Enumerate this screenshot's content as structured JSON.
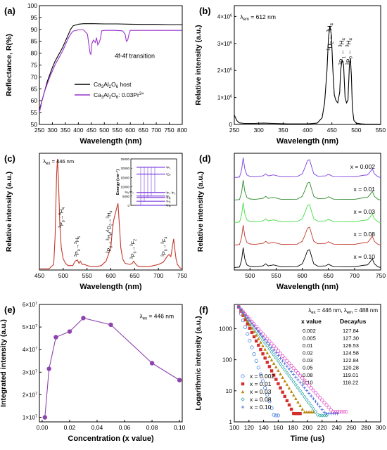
{
  "chart_data": [
    {
      "id": "a",
      "panel_label": "(a)",
      "type": "line",
      "xlabel": "Wavelength (nm)",
      "ylabel": "Reflectance, R(%)",
      "xlim": [
        250,
        800
      ],
      "ylim": [
        50,
        100
      ],
      "xticks": [
        250,
        300,
        350,
        400,
        450,
        500,
        550,
        600,
        650,
        700,
        750,
        800
      ],
      "yticks": [
        50,
        55,
        60,
        65,
        70,
        75,
        80,
        85,
        90,
        95,
        100
      ],
      "annotations": [
        {
          "text": "4f-4f transition",
          "x": 540,
          "y": 78
        }
      ],
      "series": [
        {
          "name": "Ca3Al2O6 host",
          "legend_html": "Ca<tspan dy='2' font-size='6'>3</tspan><tspan dy='-2'>Al</tspan><tspan dy='2' font-size='6'>2</tspan><tspan dy='-2'>O</tspan><tspan dy='2' font-size='6'>6</tspan><tspan dy='-2'> host</tspan>",
          "color": "#000000",
          "x": [
            250,
            260,
            270,
            280,
            290,
            300,
            310,
            320,
            330,
            340,
            350,
            360,
            370,
            380,
            400,
            420,
            440,
            460,
            500,
            550,
            600,
            650,
            700,
            750,
            800
          ],
          "y": [
            56,
            60,
            64,
            68,
            71,
            74,
            76.5,
            78.5,
            80.5,
            82.5,
            85,
            87.5,
            90,
            91.5,
            92.2,
            92.4,
            92.4,
            92.4,
            92.3,
            92.3,
            92.2,
            92.1,
            92.1,
            92.0,
            92.0
          ]
        },
        {
          "name": "Ca3Al2O6: 0.03Pr3+",
          "legend_html": "Ca<tspan dy='2' font-size='6'>3</tspan><tspan dy='-2'>Al</tspan><tspan dy='2' font-size='6'>2</tspan><tspan dy='-2'>O</tspan><tspan dy='2' font-size='6'>6</tspan><tspan dy='-2'>: 0.03Pr</tspan><tspan dy='-3' font-size='6'>3+</tspan>",
          "color": "#9933cc",
          "x": [
            250,
            260,
            270,
            280,
            290,
            300,
            310,
            320,
            330,
            340,
            350,
            360,
            370,
            380,
            400,
            420,
            435,
            440,
            445,
            448,
            452,
            458,
            465,
            470,
            475,
            480,
            485,
            490,
            500,
            540,
            570,
            580,
            585,
            590,
            595,
            600,
            620,
            650,
            700,
            750,
            800
          ],
          "y": [
            55,
            60,
            64,
            67,
            70,
            72.5,
            75,
            77,
            79,
            81,
            83.5,
            86,
            88,
            89.3,
            89.8,
            89.8,
            88,
            84,
            80,
            79.5,
            84,
            85.5,
            84.5,
            86.5,
            83.5,
            84.5,
            86,
            89.4,
            89.6,
            89.6,
            89.4,
            88,
            85,
            85.5,
            88,
            89.6,
            89.6,
            89.6,
            89.6,
            89.6,
            89.6
          ]
        }
      ]
    },
    {
      "id": "b",
      "panel_label": "(b)",
      "type": "line",
      "xlabel": "Wavelength (nm)",
      "ylabel": "Relative intensity (a.u.)",
      "xlim": [
        250,
        550
      ],
      "ylim": [
        0,
        4400000
      ],
      "xticks": [
        250,
        300,
        350,
        400,
        450,
        500,
        550
      ],
      "yticks": [
        0,
        1000000,
        2000000,
        3000000,
        4000000
      ],
      "ytick_labels": [
        {
          "base": "0",
          "exp": ""
        },
        {
          "base": "1×10",
          "exp": "6"
        },
        {
          "base": "2×10",
          "exp": "6"
        },
        {
          "base": "3×10",
          "exp": "6"
        },
        {
          "base": "4×10",
          "exp": "6"
        }
      ],
      "annotations": [
        {
          "id": "lem",
          "html": "λ<tspan dy='2' font-size='6'>em</tspan><tspan dy='-2'> = 612 nm</tspan>",
          "x": 262,
          "y": 3900000
        },
        {
          "id": "b1",
          "html": "<tspan dy='-3' font-size='6'>1</tspan><tspan dy='3'>D</tspan><tspan dy='2' font-size='6'>2</tspan><tspan dy='-2'> ← </tspan><tspan dy='-3' font-size='6'>3</tspan><tspan dy='3'>H</tspan><tspan dy='2' font-size='6'>4</tspan>",
          "x": 450,
          "y": 3750000,
          "rotate": -90
        },
        {
          "id": "b2",
          "html": "<tspan dy='-3' font-size='6'>3</tspan><tspan dy='3'>P</tspan><tspan dy='2' font-size='6'>1</tspan><tspan dy='-2'> ← </tspan><tspan dy='-3' font-size='6'>3</tspan><tspan dy='3'>H</tspan><tspan dy='2' font-size='6'>4</tspan>",
          "x": 474,
          "y": 3200000,
          "rotate": -90
        },
        {
          "id": "b3",
          "html": "<tspan dy='-3' font-size='6'>3</tspan><tspan dy='3'>P</tspan><tspan dy='2' font-size='6'>0</tspan><tspan dy='-2'> ← </tspan><tspan dy='-3' font-size='6'>3</tspan><tspan dy='3'>H</tspan><tspan dy='2' font-size='6'>4</tspan>",
          "x": 489,
          "y": 3200000,
          "rotate": -90
        }
      ],
      "series": [
        {
          "color": "#000000",
          "x": [
            250,
            255,
            260,
            270,
            290,
            310,
            330,
            360,
            400,
            420,
            430,
            435,
            440,
            443,
            446,
            449,
            452,
            455,
            458,
            462,
            466,
            468,
            471,
            474,
            477,
            480,
            483,
            486,
            488,
            490,
            492,
            495,
            500,
            510,
            520,
            550
          ],
          "y": [
            350000,
            150000,
            60000,
            40000,
            40000,
            50000,
            40000,
            20000,
            20000,
            50000,
            250000,
            800000,
            2000000,
            3200000,
            3650000,
            3300000,
            2000000,
            1100000,
            900000,
            800000,
            1200000,
            2000000,
            2400000,
            2200000,
            1000000,
            800000,
            900000,
            2200000,
            2450000,
            1800000,
            600000,
            150000,
            50000,
            20000,
            10000,
            10000
          ]
        }
      ]
    },
    {
      "id": "c",
      "panel_label": "(c)",
      "type": "line",
      "xlabel": "Wavelength (nm)",
      "ylabel": "Relative intensity (a.u.)",
      "xlim": [
        450,
        750
      ],
      "ylim": [
        0,
        1.05
      ],
      "xticks": [
        450,
        500,
        550,
        600,
        650,
        700,
        750
      ],
      "annotations": [
        {
          "id": "lex",
          "html": "λ<tspan dy='2' font-size='6'>ex</tspan><tspan dy='-2'> = 446 nm</tspan>",
          "x": 458,
          "y": 0.96
        },
        {
          "id": "c1",
          "html": "<tspan dy='-3' font-size='5'>3</tspan><tspan dy='3'>P</tspan><tspan dy='2' font-size='5'>0</tspan><tspan dy='-2'>→</tspan><tspan dy='-3' font-size='5'>3</tspan><tspan dy='3'>H</tspan><tspan dy='2' font-size='5'>4</tspan>",
          "x": 500,
          "y": 0.38,
          "rotate": -90
        },
        {
          "id": "c2",
          "html": "<tspan dy='-3' font-size='5'>3</tspan><tspan dy='3'>P</tspan><tspan dy='2' font-size='5'>0</tspan><tspan dy='-2'>→</tspan><tspan dy='-3' font-size='5'>3</tspan><tspan dy='3'>H</tspan><tspan dy='2' font-size='5'>5</tspan>",
          "x": 533,
          "y": 0.12,
          "rotate": -90
        },
        {
          "id": "c3",
          "html": "<tspan dy='-3' font-size='5'>3</tspan><tspan dy='3'>P</tspan><tspan dy='2' font-size='5'>0</tspan><tspan dy='-2'>→</tspan><tspan dy='-3' font-size='5'>3</tspan><tspan dy='3'>H</tspan><tspan dy='2' font-size='5'>6</tspan><tspan dy='-2'>/</tspan><tspan dy='-3' font-size='5'>1</tspan><tspan dy='3'>D</tspan><tspan dy='2' font-size='5'>2</tspan><tspan dy='-2'>→</tspan><tspan dy='-3' font-size='5'>3</tspan><tspan dy='3'>H</tspan><tspan dy='2' font-size='5'>4</tspan>",
          "x": 600,
          "y": 0.15,
          "rotate": -90
        },
        {
          "id": "c4",
          "html": "<tspan dy='-3' font-size='5'>3</tspan><tspan dy='3'>P</tspan><tspan dy='2' font-size='5'>0</tspan><tspan dy='-2'>→</tspan><tspan dy='-3' font-size='5'>3</tspan><tspan dy='3'>F</tspan><tspan dy='2' font-size='5'>2</tspan>",
          "x": 650,
          "y": 0.1,
          "rotate": -90
        },
        {
          "id": "c5",
          "html": "<tspan dy='-3' font-size='5'>3</tspan><tspan dy='3'>P</tspan><tspan dy='2' font-size='5'>0</tspan><tspan dy='-2'>→</tspan><tspan dy='-3' font-size='5'>3</tspan><tspan dy='3'>F</tspan><tspan dy='2' font-size='5'>4</tspan>",
          "x": 715,
          "y": 0.12,
          "rotate": -90
        }
      ],
      "series": [
        {
          "color": "#c0392b",
          "x": [
            450,
            470,
            480,
            483,
            486,
            488,
            490,
            493,
            496,
            500,
            505,
            510,
            520,
            525,
            530,
            533,
            536,
            540,
            545,
            550,
            560,
            570,
            580,
            590,
            600,
            603,
            606,
            609,
            612,
            615,
            618,
            621,
            625,
            630,
            640,
            645,
            648,
            651,
            655,
            660,
            670,
            680,
            690,
            700,
            710,
            715,
            718,
            722,
            726,
            729,
            732,
            734,
            737,
            740,
            745,
            750
          ],
          "y": [
            0.01,
            0.01,
            0.05,
            0.3,
            0.85,
            1.0,
            0.8,
            0.4,
            0.2,
            0.1,
            0.06,
            0.04,
            0.04,
            0.08,
            0.09,
            0.06,
            0.08,
            0.05,
            0.05,
            0.04,
            0.03,
            0.03,
            0.04,
            0.08,
            0.2,
            0.35,
            0.45,
            0.5,
            0.55,
            0.6,
            0.4,
            0.2,
            0.1,
            0.06,
            0.05,
            0.06,
            0.08,
            0.06,
            0.04,
            0.03,
            0.03,
            0.03,
            0.04,
            0.05,
            0.07,
            0.1,
            0.12,
            0.14,
            0.12,
            0.2,
            0.28,
            0.2,
            0.1,
            0.05,
            0.02,
            0.01
          ]
        }
      ],
      "inset": {
        "ylabel": "Energy (cm⁻¹)",
        "yticks": [
          0,
          5000,
          10000,
          15000,
          20000,
          25000
        ],
        "levels": [
          {
            "label": "³P₀",
            "e": 20500
          },
          {
            "label": "¹D₂",
            "e": 16800
          },
          {
            "label": "³F₄ ³F₃",
            "e": 6900
          },
          {
            "label": "³F₂",
            "e": 5000
          },
          {
            "label": "³H₆",
            "e": 4200
          },
          {
            "label": "³H₅",
            "e": 2200
          },
          {
            "label": "³H₄",
            "e": 0
          }
        ],
        "side_label": "³H₆/³F₂"
      }
    },
    {
      "id": "d",
      "panel_label": "(d)",
      "type": "line",
      "xlabel": "Wavelength (nm)",
      "ylabel": "Relative intensity (a.u.)",
      "xlim": [
        470,
        750
      ],
      "xticks": [
        500,
        550,
        600,
        650,
        700,
        750
      ],
      "series": [
        {
          "name": "x = 0.002",
          "color": "#7b3fe0"
        },
        {
          "name": "x = 0.01",
          "color": "#2e8b2e"
        },
        {
          "name": "x = 0.03",
          "color": "#44dd44"
        },
        {
          "name": "x = 0.08",
          "color": "#c0392b"
        },
        {
          "name": "x = 0.10",
          "color": "#000000"
        }
      ],
      "profile_x": [
        470,
        480,
        484,
        487,
        490,
        494,
        500,
        510,
        525,
        530,
        535,
        545,
        560,
        590,
        600,
        605,
        610,
        614,
        618,
        622,
        630,
        645,
        650,
        660,
        700,
        715,
        725,
        730,
        734,
        738,
        745,
        750
      ],
      "profile_y": [
        0.02,
        0.04,
        0.4,
        1.0,
        0.45,
        0.15,
        0.07,
        0.05,
        0.1,
        0.2,
        0.1,
        0.15,
        0.05,
        0.06,
        0.2,
        0.5,
        0.85,
        0.9,
        0.55,
        0.2,
        0.08,
        0.1,
        0.18,
        0.06,
        0.05,
        0.12,
        0.15,
        0.3,
        0.45,
        0.2,
        0.05,
        0.02
      ]
    },
    {
      "id": "e",
      "panel_label": "(e)",
      "type": "line",
      "xlabel": "Concentration (x value)",
      "ylabel": "Integrated intensity (a.u.)",
      "xlim": [
        -0.002,
        0.102
      ],
      "ylim": [
        8000000,
        60000000
      ],
      "xticks": [
        0.0,
        0.02,
        0.04,
        0.06,
        0.08,
        0.1
      ],
      "xtick_labels": [
        "0.00",
        "0.02",
        "0.04",
        "0.06",
        "0.08",
        "0.10"
      ],
      "yticks": [
        10000000,
        20000000,
        30000000,
        40000000,
        50000000,
        60000000
      ],
      "ytick_labels": [
        {
          "base": "1×10",
          "exp": "7"
        },
        {
          "base": "2×10",
          "exp": "7"
        },
        {
          "base": "3×10",
          "exp": "7"
        },
        {
          "base": "4×10",
          "exp": "7"
        },
        {
          "base": "5×10",
          "exp": "7"
        },
        {
          "base": "6×10",
          "exp": "7"
        }
      ],
      "annotations": [
        {
          "id": "lex",
          "html": "λ<tspan dy='2' font-size='6'>ex</tspan><tspan dy='-2'> = 446 nm</tspan>",
          "x": 0.071,
          "y": 54000000
        }
      ],
      "series": [
        {
          "color": "#8e44ad",
          "x": [
            0.002,
            0.005,
            0.01,
            0.02,
            0.03,
            0.05,
            0.08,
            0.1
          ],
          "y": [
            10000000,
            31500000,
            45500000,
            48000000,
            54000000,
            51000000,
            34000000,
            26500000
          ]
        }
      ]
    },
    {
      "id": "f",
      "panel_label": "(f)",
      "type": "scatter",
      "xlabel": "Time (us)",
      "ylabel": "Logarithmic intensity (a.u.)",
      "xlim": [
        100,
        300
      ],
      "ylim_log": [
        1,
        6000
      ],
      "xticks": [
        100,
        120,
        140,
        160,
        180,
        200,
        220,
        240,
        260,
        280,
        300
      ],
      "yticks": [
        1,
        10,
        100,
        1000
      ],
      "ytick_labels": [
        "1",
        "10",
        "100",
        "1000"
      ],
      "header_html": "λ<tspan dy='2' font-size='6'>ex</tspan><tspan dy='-2'> = 446 nm, λ</tspan><tspan dy='2' font-size='6'>em</tspan><tspan dy='-2'> = 488 nm</tspan>",
      "table": {
        "col1": "x  value",
        "col2": "Decay/us",
        "rows": [
          [
            "0.002",
            "127.84"
          ],
          [
            "0.005",
            "127.30"
          ],
          [
            "0.01",
            "126.53"
          ],
          [
            "0.02",
            "124.58"
          ],
          [
            "0.03",
            "122.84"
          ],
          [
            "0.05",
            "120.28"
          ],
          [
            "0.08",
            "119.01"
          ],
          [
            "0.10",
            "118.22"
          ]
        ]
      },
      "series": [
        {
          "name": "x = 0.002",
          "color": "#2e6fd9",
          "marker": "o",
          "tau": 6.0
        },
        {
          "name": "x = 0.01",
          "color": "#d32f2f",
          "marker": "s",
          "tau": 9.5
        },
        {
          "name": "x = 0.03",
          "color": "#b8860b",
          "marker": "^",
          "tau": 11.5
        },
        {
          "name": "x = 0.08",
          "color": "#20a0a0",
          "marker": "d",
          "tau": 13.5
        },
        {
          "name": "x = 0.10",
          "color": "#3b5bdb",
          "marker": "*",
          "tau": 15.0
        },
        {
          "name": "",
          "color": "#e040c0",
          "marker": "o",
          "tau": 16.5
        }
      ]
    }
  ]
}
